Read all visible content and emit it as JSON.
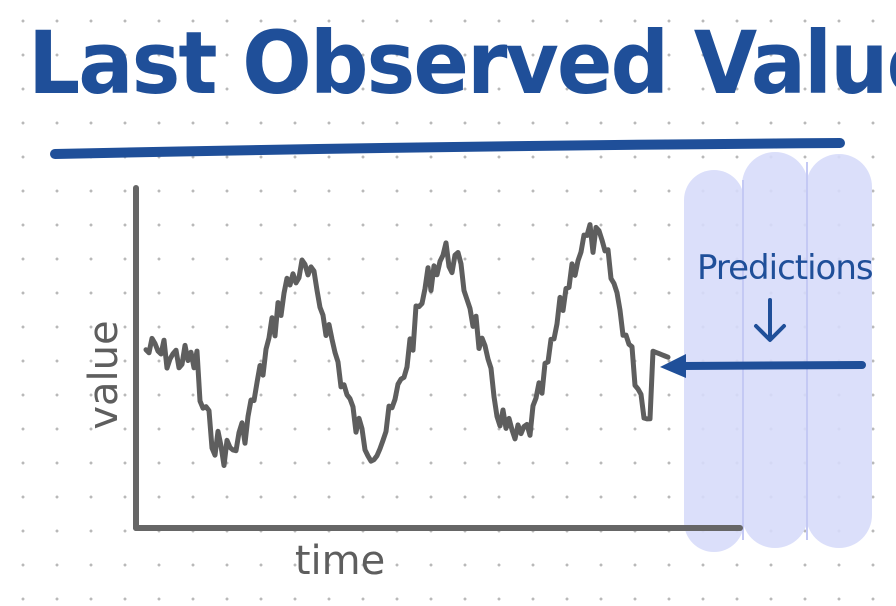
{
  "title": "Last Observed Value",
  "axes": {
    "y_label": "value",
    "x_label": "time"
  },
  "predictions": {
    "label": "Predictions",
    "arrow": "down-arrow-icon"
  },
  "colors": {
    "title": "#1f4f99",
    "series": "#5e5e5e",
    "prediction_line": "#1f4f99",
    "prediction_band": "#d7dbfa"
  }
}
